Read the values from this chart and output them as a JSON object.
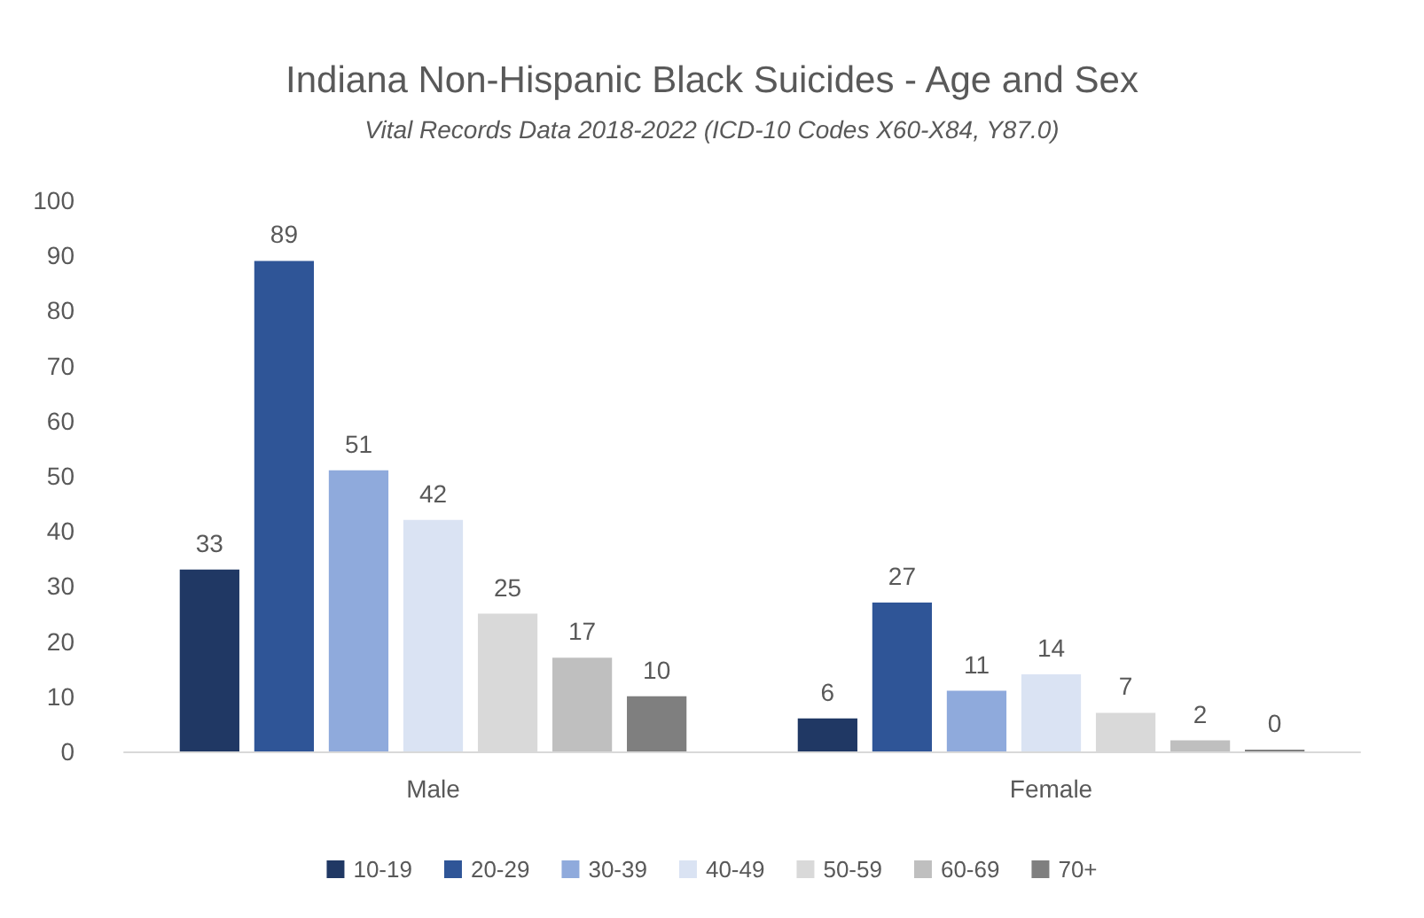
{
  "chart_data": {
    "type": "bar",
    "title": "Indiana Non-Hispanic Black Suicides - Age and Sex",
    "subtitle": "Vital Records Data 2018-2022 (ICD-10 Codes X60-X84, Y87.0)",
    "categories": [
      "Male",
      "Female"
    ],
    "series": [
      {
        "name": "10-19",
        "color": "#203864",
        "values": [
          33,
          6
        ]
      },
      {
        "name": "20-29",
        "color": "#2f5597",
        "values": [
          89,
          27
        ]
      },
      {
        "name": "30-39",
        "color": "#8faadc",
        "values": [
          51,
          11
        ]
      },
      {
        "name": "40-49",
        "color": "#dae3f3",
        "values": [
          42,
          14
        ]
      },
      {
        "name": "50-59",
        "color": "#d9d9d9",
        "values": [
          25,
          7
        ]
      },
      {
        "name": "60-69",
        "color": "#bfbfbf",
        "values": [
          17,
          2
        ]
      },
      {
        "name": "70+",
        "color": "#7f7f7f",
        "values": [
          10,
          0
        ]
      }
    ],
    "ylim": [
      0,
      100
    ],
    "yticks": [
      0,
      10,
      20,
      30,
      40,
      50,
      60,
      70,
      80,
      90,
      100
    ],
    "grid": false,
    "legend": "bottom",
    "data_labels": true
  }
}
